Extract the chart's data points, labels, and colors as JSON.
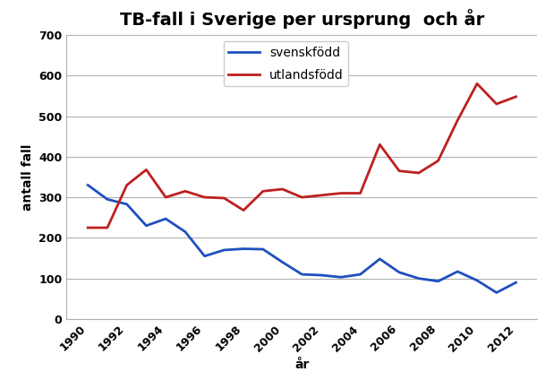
{
  "title": "TB-fall i Sverige per ursprung  och år",
  "xlabel": "år",
  "ylabel": "antall fall",
  "years": [
    1990,
    1991,
    1992,
    1993,
    1994,
    1995,
    1996,
    1997,
    1998,
    1999,
    2000,
    2001,
    2002,
    2003,
    2004,
    2005,
    2006,
    2007,
    2008,
    2009,
    2010,
    2011,
    2012
  ],
  "svenskfodd": [
    330,
    295,
    283,
    230,
    247,
    215,
    155,
    170,
    173,
    172,
    140,
    110,
    108,
    103,
    110,
    148,
    115,
    100,
    93,
    117,
    95,
    65,
    90
  ],
  "utlandsfodd": [
    225,
    225,
    330,
    368,
    300,
    315,
    300,
    298,
    268,
    315,
    320,
    300,
    305,
    310,
    310,
    430,
    365,
    360,
    390,
    490,
    580,
    530,
    548
  ],
  "color_svensk": "#1f4fbf",
  "color_utlands": "#bf1f1f",
  "ylim": [
    0,
    700
  ],
  "yticks": [
    0,
    100,
    200,
    300,
    400,
    500,
    600,
    700
  ],
  "xticks": [
    1990,
    1992,
    1994,
    1996,
    1998,
    2000,
    2002,
    2004,
    2006,
    2008,
    2010,
    2012
  ],
  "legend_labels": [
    "svenskfödd",
    "utlandsfödd"
  ],
  "background_color": "#ffffff",
  "grid_color": "#b0b0b0",
  "line_width": 2.0,
  "title_fontsize": 14,
  "tick_fontsize": 9,
  "label_fontsize": 10,
  "legend_fontsize": 10
}
